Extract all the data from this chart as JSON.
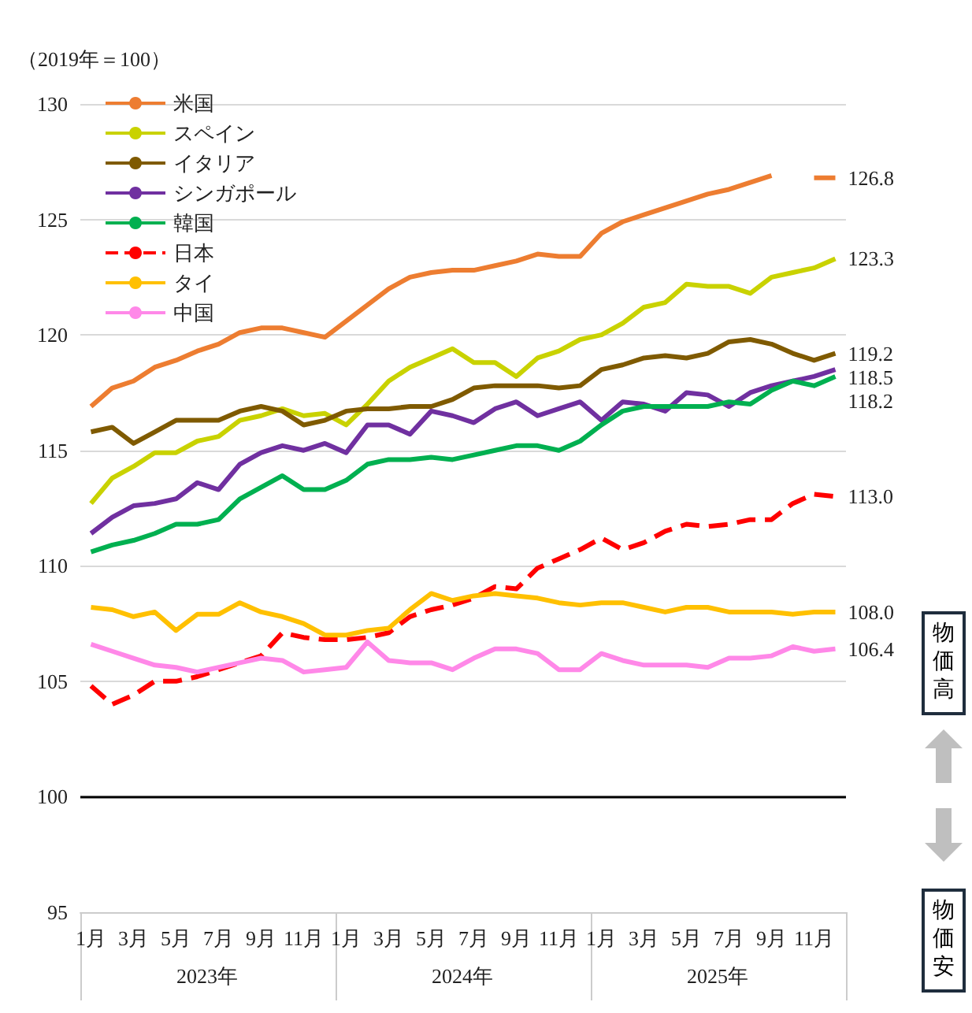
{
  "chart_data": {
    "type": "line",
    "ylabel": "（2019年＝100）",
    "categories": [
      "1月",
      null,
      "3月",
      null,
      "5月",
      null,
      "7月",
      null,
      "9月",
      null,
      "11月",
      null,
      "1月",
      null,
      "3月",
      null,
      "5月",
      null,
      "7月",
      null,
      "9月",
      null,
      "11月",
      null,
      "1月",
      null,
      "3月",
      null,
      "5月",
      null,
      "7月",
      null,
      "9月",
      null,
      "11月",
      null
    ],
    "ylim": [
      95,
      130
    ],
    "yticks": [
      95,
      100,
      105,
      110,
      115,
      120,
      125,
      130
    ],
    "grid": "y",
    "legend": "top left",
    "marker": "none",
    "ref_lines": [
      {
        "axis": "y",
        "value": 100,
        "color": "#000000"
      }
    ],
    "annotations": [
      "2023年",
      "2024年",
      "2025年",
      "物価高",
      "物価安"
    ],
    "series": [
      {
        "name": "米国",
        "color": "#ed7d31",
        "values": [
          116.9,
          117.7,
          118.0,
          118.6,
          118.9,
          119.3,
          119.6,
          120.1,
          120.3,
          120.3,
          120.1,
          119.9,
          120.6,
          121.3,
          122.0,
          122.5,
          122.7,
          122.8,
          122.8,
          123.0,
          123.2,
          123.5,
          123.4,
          123.4,
          124.4,
          124.9,
          125.2,
          125.5,
          125.8,
          126.1,
          126.3,
          126.6,
          126.9,
          null,
          126.8,
          126.8
        ],
        "value_labels": [
          null,
          null,
          null,
          null,
          null,
          null,
          null,
          null,
          null,
          null,
          null,
          null,
          null,
          null,
          null,
          null,
          null,
          null,
          null,
          null,
          null,
          null,
          null,
          null,
          null,
          null,
          null,
          null,
          null,
          null,
          null,
          null,
          null,
          null,
          null,
          "126.8"
        ]
      },
      {
        "name": "スペイン",
        "color": "#c9d200",
        "values": [
          112.7,
          113.8,
          114.3,
          114.9,
          114.9,
          115.4,
          115.6,
          116.3,
          116.5,
          116.8,
          116.5,
          116.6,
          116.1,
          117.0,
          118.0,
          118.6,
          119.0,
          119.4,
          118.8,
          118.8,
          118.2,
          119.0,
          119.3,
          119.8,
          120.0,
          120.5,
          121.2,
          121.4,
          122.2,
          122.1,
          122.1,
          121.8,
          122.5,
          122.7,
          122.9,
          123.3
        ],
        "value_labels": [
          null,
          null,
          null,
          null,
          null,
          null,
          null,
          null,
          null,
          null,
          null,
          null,
          null,
          null,
          null,
          null,
          null,
          null,
          null,
          null,
          null,
          null,
          null,
          null,
          null,
          null,
          null,
          null,
          null,
          null,
          null,
          null,
          null,
          null,
          null,
          "123.3"
        ]
      },
      {
        "name": "イタリア",
        "color": "#7f5a00",
        "values": [
          115.8,
          116.0,
          115.3,
          115.8,
          116.3,
          116.3,
          116.3,
          116.7,
          116.9,
          116.7,
          116.1,
          116.3,
          116.7,
          116.8,
          116.8,
          116.9,
          116.9,
          117.2,
          117.7,
          117.8,
          117.8,
          117.8,
          117.7,
          117.8,
          118.5,
          118.7,
          119.0,
          119.1,
          119.0,
          119.2,
          119.7,
          119.8,
          119.6,
          119.2,
          118.9,
          119.2
        ],
        "value_labels": [
          null,
          null,
          null,
          null,
          null,
          null,
          null,
          null,
          null,
          null,
          null,
          null,
          null,
          null,
          null,
          null,
          null,
          null,
          null,
          null,
          null,
          null,
          null,
          null,
          null,
          null,
          null,
          null,
          null,
          null,
          null,
          null,
          null,
          null,
          null,
          "119.2"
        ]
      },
      {
        "name": "シンガポール",
        "color": "#7030a0",
        "values": [
          111.4,
          112.1,
          112.6,
          112.7,
          112.9,
          113.6,
          113.3,
          114.4,
          114.9,
          115.2,
          115.0,
          115.3,
          114.9,
          116.1,
          116.1,
          115.7,
          116.7,
          116.5,
          116.2,
          116.8,
          117.1,
          116.5,
          116.8,
          117.1,
          116.3,
          117.1,
          117.0,
          116.7,
          117.5,
          117.4,
          116.9,
          117.5,
          117.8,
          118.0,
          118.2,
          118.5
        ],
        "value_labels": [
          null,
          null,
          null,
          null,
          null,
          null,
          null,
          null,
          null,
          null,
          null,
          null,
          null,
          null,
          null,
          null,
          null,
          null,
          null,
          null,
          null,
          null,
          null,
          null,
          null,
          null,
          null,
          null,
          null,
          null,
          null,
          null,
          null,
          null,
          null,
          "118.5"
        ]
      },
      {
        "name": "韓国",
        "color": "#00b050",
        "values": [
          110.6,
          110.9,
          111.1,
          111.4,
          111.8,
          111.8,
          112.0,
          112.9,
          113.4,
          113.9,
          113.3,
          113.3,
          113.7,
          114.4,
          114.6,
          114.6,
          114.7,
          114.6,
          114.8,
          115.0,
          115.2,
          115.2,
          115.0,
          115.4,
          116.1,
          116.7,
          116.9,
          116.9,
          116.9,
          116.9,
          117.1,
          117.0,
          117.6,
          118.0,
          117.8,
          118.2
        ],
        "value_labels": [
          null,
          null,
          null,
          null,
          null,
          null,
          null,
          null,
          null,
          null,
          null,
          null,
          null,
          null,
          null,
          null,
          null,
          null,
          null,
          null,
          null,
          null,
          null,
          null,
          null,
          null,
          null,
          null,
          null,
          null,
          null,
          null,
          null,
          null,
          null,
          "118.2"
        ]
      },
      {
        "name": "日本",
        "color": "#ff0000",
        "line_style": "dashed",
        "values": [
          104.8,
          104.0,
          104.4,
          105.0,
          105.0,
          105.2,
          105.5,
          105.8,
          106.1,
          107.1,
          106.9,
          106.8,
          106.8,
          106.9,
          107.1,
          107.8,
          108.1,
          108.3,
          108.6,
          109.1,
          109.0,
          109.9,
          110.3,
          110.7,
          111.2,
          110.7,
          111.0,
          111.5,
          111.8,
          111.7,
          111.8,
          112.0,
          112.0,
          112.7,
          113.1,
          113.0
        ],
        "value_labels": [
          null,
          null,
          null,
          null,
          null,
          null,
          null,
          null,
          null,
          null,
          null,
          null,
          null,
          null,
          null,
          null,
          null,
          null,
          null,
          null,
          null,
          null,
          null,
          null,
          null,
          null,
          null,
          null,
          null,
          null,
          null,
          null,
          null,
          null,
          null,
          "113.0"
        ]
      },
      {
        "name": "タイ",
        "color": "#ffc000",
        "values": [
          108.2,
          108.1,
          107.8,
          108.0,
          107.2,
          107.9,
          107.9,
          108.4,
          108.0,
          107.8,
          107.5,
          107.0,
          107.0,
          107.2,
          107.3,
          108.1,
          108.8,
          108.5,
          108.7,
          108.8,
          108.7,
          108.6,
          108.4,
          108.3,
          108.4,
          108.4,
          108.2,
          108.0,
          108.2,
          108.2,
          108.0,
          108.0,
          108.0,
          107.9,
          108.0,
          108.0
        ],
        "value_labels": [
          null,
          null,
          null,
          null,
          null,
          null,
          null,
          null,
          null,
          null,
          null,
          null,
          null,
          null,
          null,
          null,
          null,
          null,
          null,
          null,
          null,
          null,
          null,
          null,
          null,
          null,
          null,
          null,
          null,
          null,
          null,
          null,
          null,
          null,
          null,
          "108.0"
        ]
      },
      {
        "name": "中国",
        "color": "#ff88e8",
        "values": [
          106.6,
          106.3,
          106.0,
          105.7,
          105.6,
          105.4,
          105.6,
          105.8,
          106.0,
          105.9,
          105.4,
          105.5,
          105.6,
          106.7,
          105.9,
          105.8,
          105.8,
          105.5,
          106.0,
          106.4,
          106.4,
          106.2,
          105.5,
          105.5,
          106.2,
          105.9,
          105.7,
          105.7,
          105.7,
          105.6,
          106.0,
          106.0,
          106.1,
          106.5,
          106.3,
          106.4
        ],
        "value_labels": [
          null,
          null,
          null,
          null,
          null,
          null,
          null,
          null,
          null,
          null,
          null,
          null,
          null,
          null,
          null,
          null,
          null,
          null,
          null,
          null,
          null,
          null,
          null,
          null,
          null,
          null,
          null,
          null,
          null,
          null,
          null,
          null,
          null,
          null,
          null,
          "106.4"
        ]
      }
    ]
  }
}
